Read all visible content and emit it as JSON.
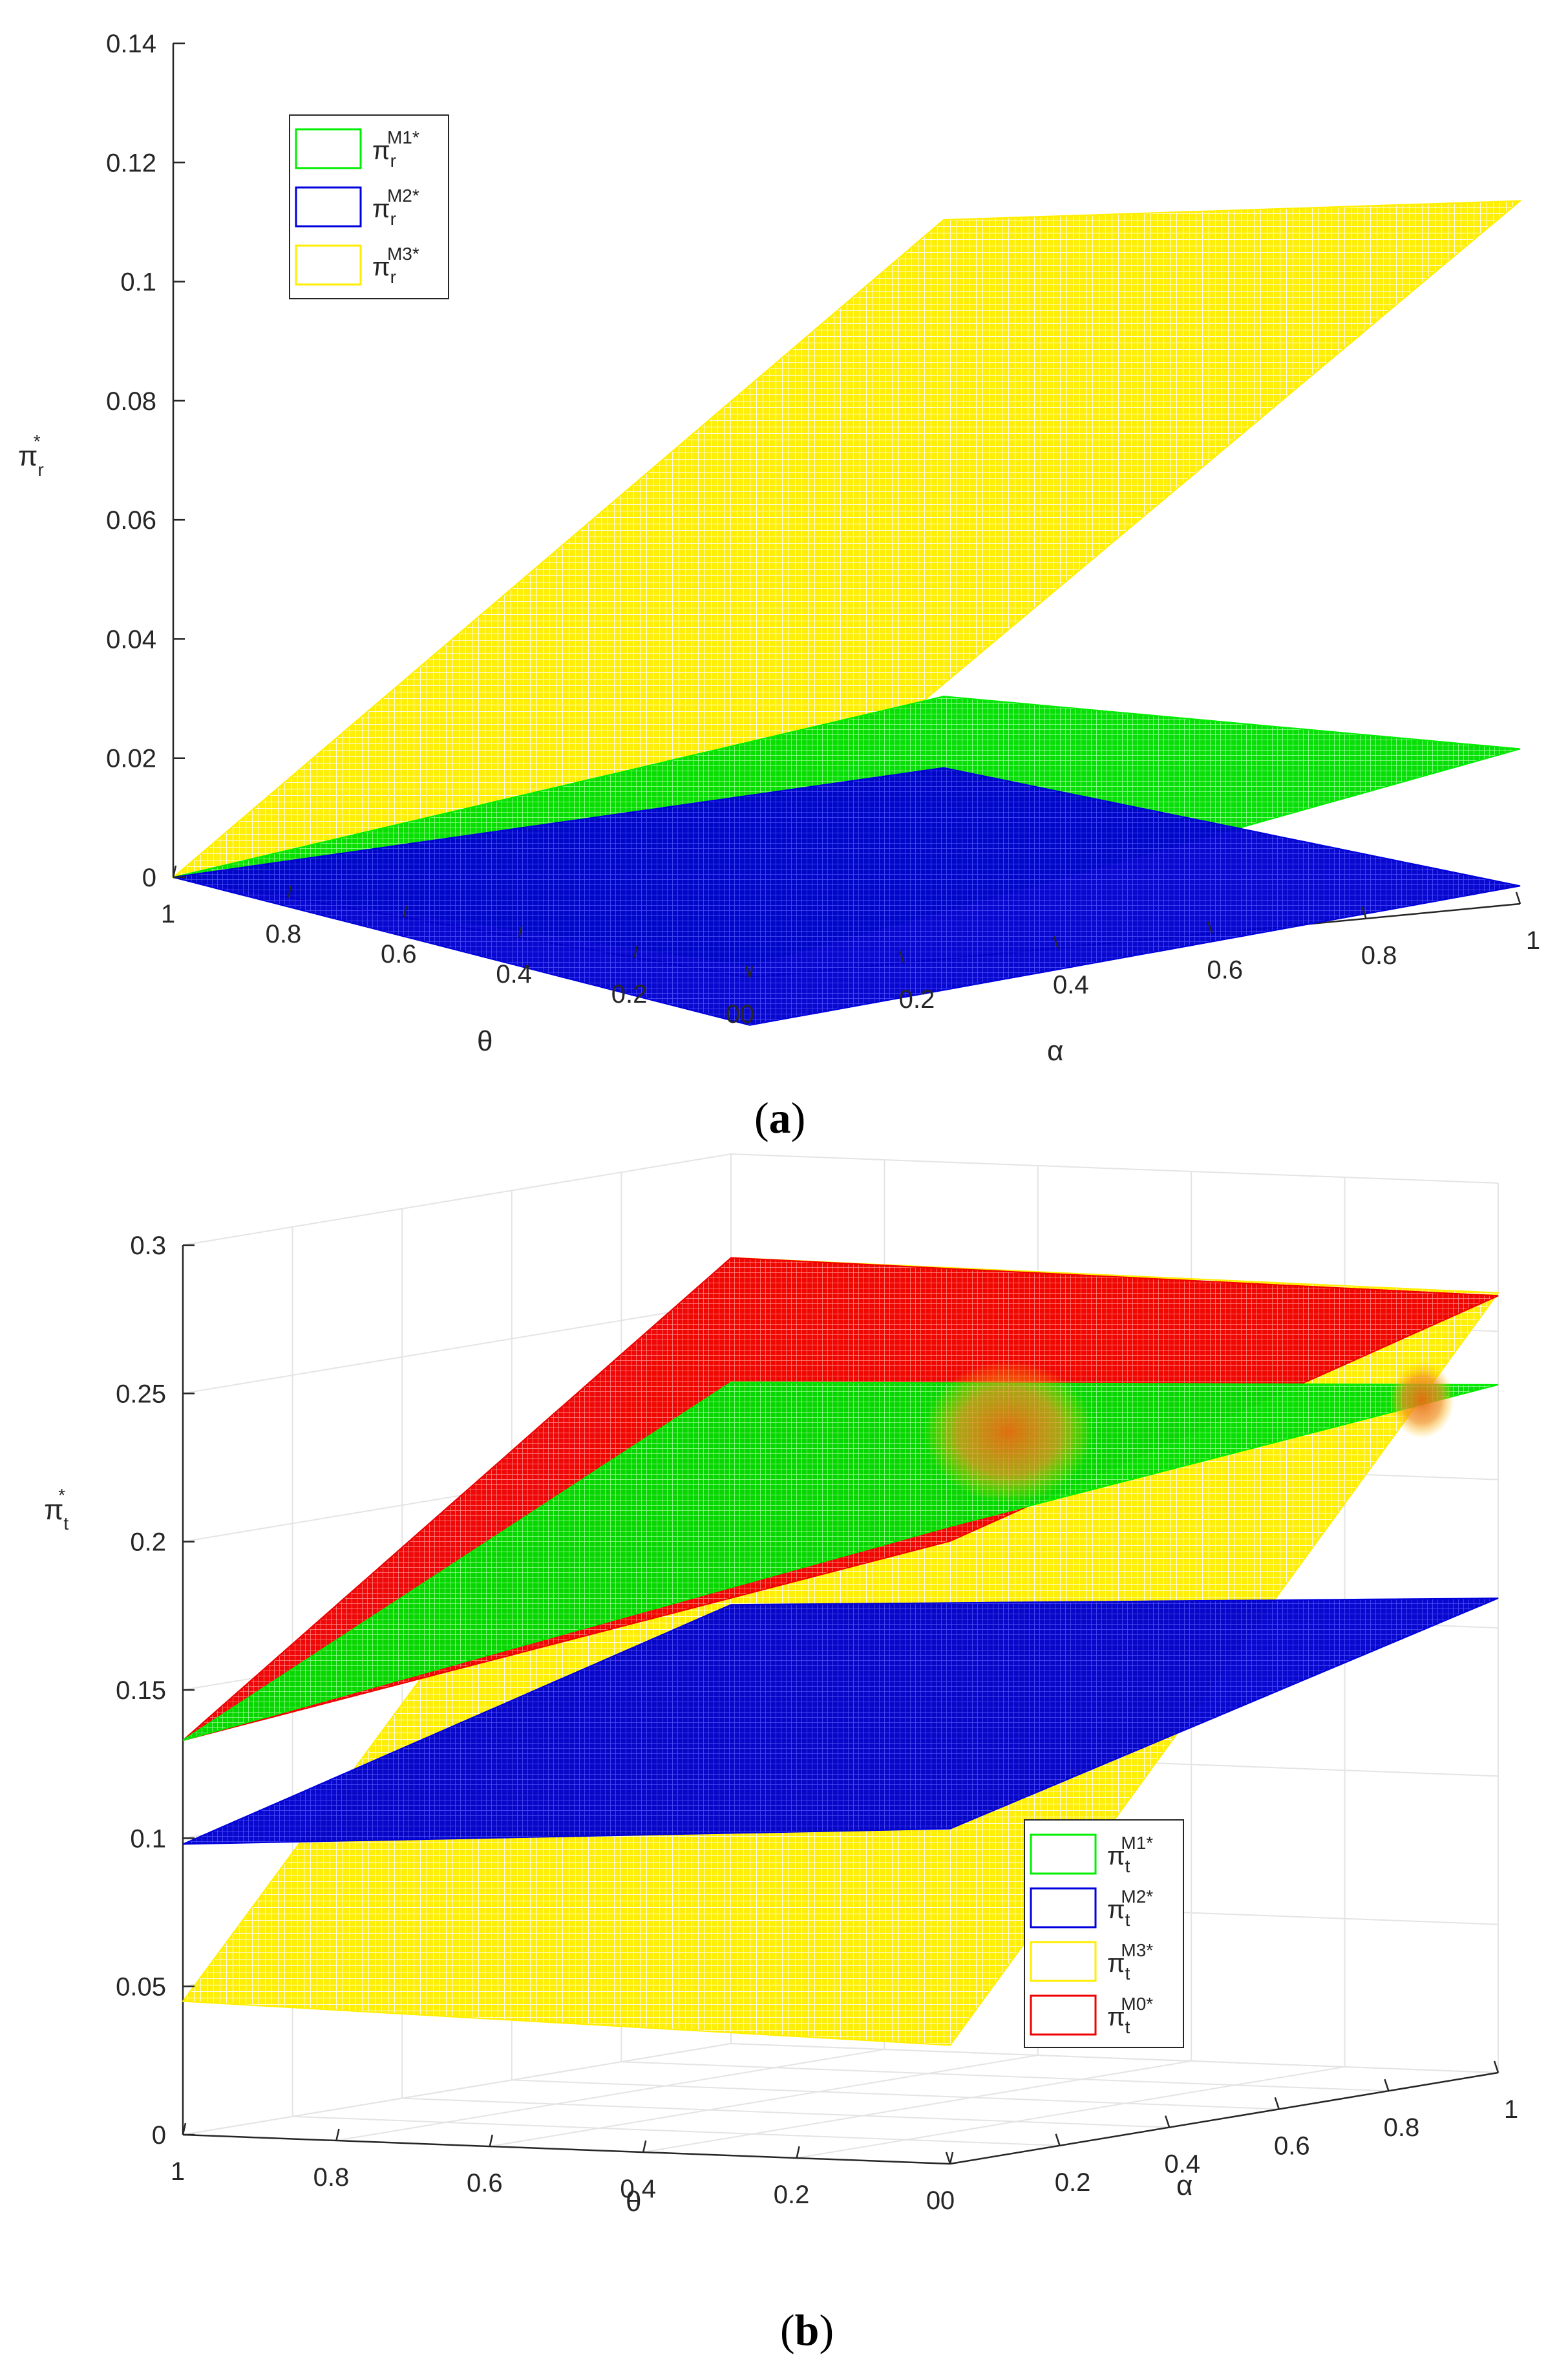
{
  "chart_data": [
    {
      "panel": "(a)",
      "panel_letter": "a",
      "type": "surface3d",
      "zlabel": "π",
      "zlabel_sub": "r",
      "zlabel_sup": "*",
      "xlabel": "α",
      "ylabel": "θ",
      "zlim": [
        0,
        0.14
      ],
      "zticks": [
        "0",
        "0.02",
        "0.04",
        "0.06",
        "0.08",
        "0.1",
        "0.12",
        "0.14"
      ],
      "xticks": [
        "0",
        "0.2",
        "0.4",
        "0.6",
        "0.8",
        "1"
      ],
      "yticks": [
        "0",
        "0.2",
        "0.4",
        "0.6",
        "0.8",
        "1"
      ],
      "grid": false,
      "legend_position": "top-left",
      "series": [
        {
          "name": "π",
          "sub": "r",
          "sup": "M1*",
          "color": "#00ee00",
          "corners": {
            "theta1_alpha0": 0,
            "theta1_alpha1": 0.018,
            "theta0_alpha0": 0.002,
            "theta0_alpha1": 0.026
          }
        },
        {
          "name": "π",
          "sub": "r",
          "sup": "M2*",
          "color": "#0000dd",
          "corners": {
            "theta1_alpha0": 0,
            "theta1_alpha1": 0.006,
            "theta0_alpha0": -0.008,
            "theta0_alpha1": 0.003
          }
        },
        {
          "name": "π",
          "sub": "r",
          "sup": "M3*",
          "color": "#ffee00",
          "corners": {
            "theta1_alpha0": 0,
            "theta1_alpha1": 0.098,
            "theta0_alpha0": 0.022,
            "theta0_alpha1": 0.118
          }
        }
      ]
    },
    {
      "panel": "(b)",
      "panel_letter": "b",
      "type": "surface3d",
      "zlabel": "π",
      "zlabel_sub": "t",
      "zlabel_sup": "*",
      "xlabel": "α",
      "ylabel": "θ",
      "zlim": [
        0,
        0.3
      ],
      "zticks": [
        "0",
        "0.05",
        "0.1",
        "0.15",
        "0.2",
        "0.25",
        "0.3"
      ],
      "xticks": [
        "0",
        "0.2",
        "0.4",
        "0.6",
        "0.8",
        "1"
      ],
      "yticks": [
        "0",
        "0.2",
        "0.4",
        "0.6",
        "0.8",
        "1"
      ],
      "grid": true,
      "legend_position": "bottom-right",
      "series": [
        {
          "name": "π",
          "sub": "t",
          "sup": "M1*",
          "color": "#00ee00",
          "corners": {
            "theta1_alpha0": 0.133,
            "theta1_alpha1": 0.223,
            "theta0_alpha0": 0.215,
            "theta0_alpha1": 0.232
          }
        },
        {
          "name": "π",
          "sub": "t",
          "sup": "M2*",
          "color": "#0000dd",
          "corners": {
            "theta1_alpha0": 0.098,
            "theta1_alpha1": 0.148,
            "theta0_alpha0": 0.113,
            "theta0_alpha1": 0.16
          }
        },
        {
          "name": "π",
          "sub": "t",
          "sup": "M3*",
          "color": "#ffee00",
          "corners": {
            "theta1_alpha0": 0.045,
            "theta1_alpha1": 0.265,
            "theta0_alpha0": 0.04,
            "theta0_alpha1": 0.263
          }
        },
        {
          "name": "π",
          "sub": "t",
          "sup": "M0*",
          "color": "#ee0000",
          "corners": {
            "theta1_alpha0": 0.133,
            "theta1_alpha1": 0.265,
            "theta0_alpha0": 0.21,
            "theta0_alpha1": 0.262
          }
        }
      ]
    }
  ]
}
